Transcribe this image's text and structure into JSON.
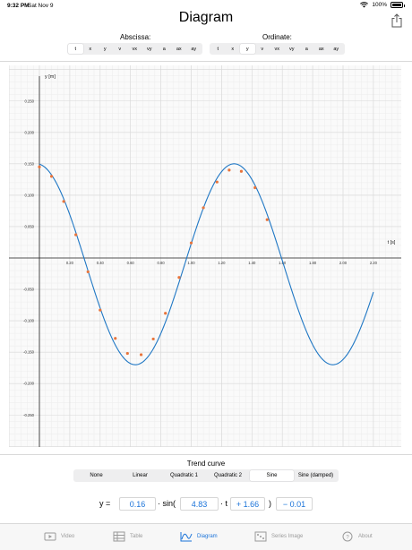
{
  "status": {
    "time": "9:32 PM",
    "date": "Sat Nov 9",
    "battery": "100%"
  },
  "title": "Diagram",
  "abscissa": {
    "label": "Abscissa:",
    "options": [
      "t",
      "x",
      "y",
      "v",
      "vx",
      "vy",
      "a",
      "ax",
      "ay"
    ],
    "selected": "t"
  },
  "ordinate": {
    "label": "Ordinate:",
    "options": [
      "t",
      "x",
      "y",
      "v",
      "vx",
      "vy",
      "a",
      "ax",
      "ay"
    ],
    "selected": "y"
  },
  "chart_data": {
    "type": "scatter",
    "xlabel": "t [s]",
    "ylabel": "y [m]",
    "xlim": [
      0,
      2.3
    ],
    "ylim": [
      -0.3,
      0.3
    ],
    "xticks": [
      "0.20",
      "0.40",
      "0.60",
      "0.80",
      "1.00",
      "1.20",
      "1.40",
      "1.60",
      "1.80",
      "2.00",
      "2.20"
    ],
    "yticks": [
      "0.250",
      "0.200",
      "0.150",
      "0.100",
      "0.050",
      "-0.050",
      "-0.100",
      "-0.150",
      "-0.200",
      "-0.250"
    ],
    "series": [
      {
        "points": [
          [
            0.0,
            0.145
          ],
          [
            0.08,
            0.13
          ],
          [
            0.16,
            0.09
          ],
          [
            0.24,
            0.037
          ],
          [
            0.32,
            -0.022
          ],
          [
            0.4,
            -0.083
          ],
          [
            0.5,
            -0.128
          ],
          [
            0.58,
            -0.152
          ],
          [
            0.67,
            -0.154
          ],
          [
            0.75,
            -0.129
          ],
          [
            0.83,
            -0.088
          ],
          [
            0.92,
            -0.031
          ],
          [
            1.0,
            0.024
          ],
          [
            1.08,
            0.08
          ],
          [
            1.17,
            0.121
          ],
          [
            1.25,
            0.14
          ],
          [
            1.33,
            0.138
          ],
          [
            1.42,
            0.112
          ],
          [
            1.5,
            0.061
          ]
        ],
        "color": "#e8743b"
      },
      {
        "trend": "sine",
        "a": 0.16,
        "b": 4.83,
        "c": 1.66,
        "d": -0.01,
        "tmax": 2.2,
        "color": "#1f77c4"
      }
    ]
  },
  "trend": {
    "title": "Trend curve",
    "options": [
      "None",
      "Linear",
      "Quadratic 1",
      "Quadratic 2",
      "Sine",
      "Sine (damped)"
    ],
    "selected": "Sine"
  },
  "formula": {
    "y_eq": "y =",
    "a": "0.16",
    "sin_open": "· sin(",
    "b": "4.83",
    "t_mul": "· t",
    "c": "+ 1.66",
    "close": ")",
    "d": "− 0.01"
  },
  "tabs": [
    {
      "label": "Video",
      "icon": "video-icon"
    },
    {
      "label": "Table",
      "icon": "table-icon"
    },
    {
      "label": "Diagram",
      "icon": "diagram-icon",
      "selected": true
    },
    {
      "label": "Series Image",
      "icon": "series-image-icon"
    },
    {
      "label": "About",
      "icon": "about-icon"
    }
  ]
}
